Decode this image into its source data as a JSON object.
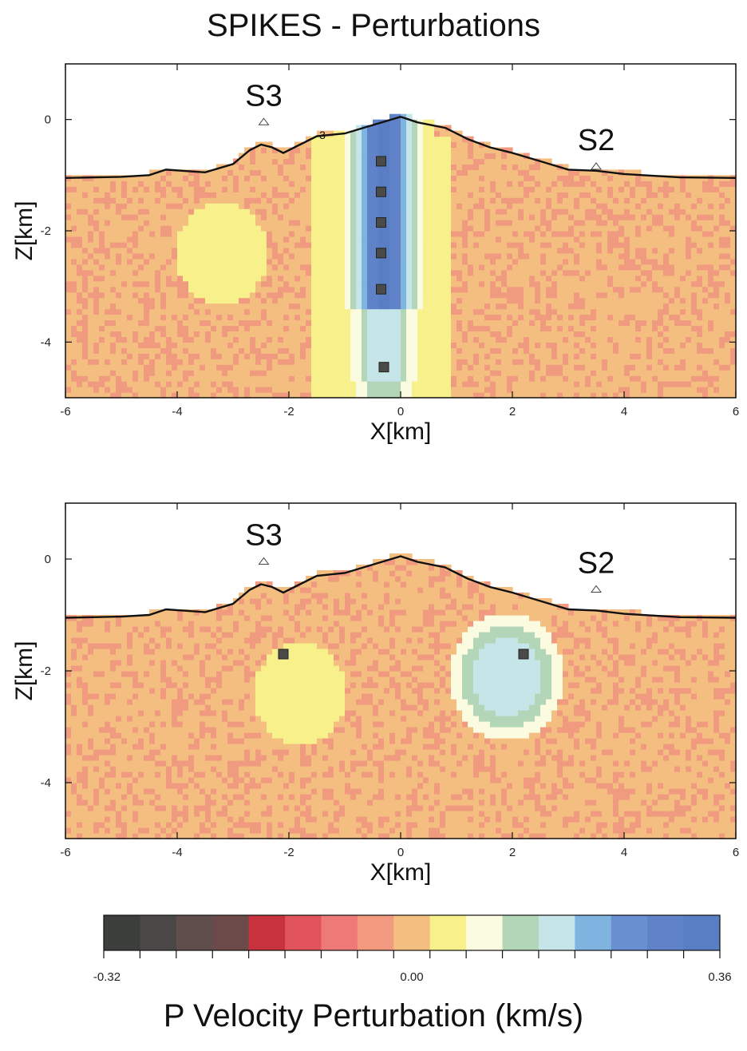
{
  "title": "SPIKES - Perturbations",
  "colorbar": {
    "label": "P Velocity Perturbation (km/s)",
    "min_label": "-0.32",
    "mid_label": "0.00",
    "max_label": "0.36",
    "colors": [
      "#3c3e3c",
      "#4a4846",
      "#5f4e4c",
      "#6c4a4a",
      "#c7323e",
      "#e0525c",
      "#ee7a78",
      "#f29a80",
      "#f4be80",
      "#f8f08a",
      "#fbfbe0",
      "#b3d6b8",
      "#c5e5e8",
      "#7fb3e0",
      "#6a8fd0",
      "#5f82c8",
      "#5a7ec4"
    ]
  },
  "chart_data": [
    {
      "type": "heatmap",
      "panel": "top",
      "xlabel": "X[km]",
      "ylabel": "Z[km]",
      "xlim": [
        -6,
        6
      ],
      "ylim": [
        -5,
        1
      ],
      "xticks": [
        "-6",
        "-4",
        "-2",
        "0",
        "2",
        "4",
        "6"
      ],
      "yticks": [
        "0",
        "-2",
        "-4"
      ],
      "station_labels": [
        {
          "text": "S3",
          "x": -2.45,
          "z": 0.25
        },
        {
          "text": "S2",
          "x": 3.5,
          "z": -0.55
        }
      ],
      "contour_label": {
        "text": "3",
        "x": -1.4,
        "z": -0.35
      },
      "spikes": [
        [
          -0.35,
          -0.75
        ],
        [
          -0.35,
          -1.3
        ],
        [
          -0.35,
          -1.85
        ],
        [
          -0.35,
          -2.4
        ],
        [
          -0.35,
          -3.05
        ],
        [
          -0.3,
          -4.45
        ]
      ],
      "topography": [
        [
          -6,
          -1.05
        ],
        [
          -5,
          -1.03
        ],
        [
          -4.5,
          -1.0
        ],
        [
          -4.2,
          -0.9
        ],
        [
          -3.5,
          -0.95
        ],
        [
          -3,
          -0.8
        ],
        [
          -2.7,
          -0.55
        ],
        [
          -2.5,
          -0.45
        ],
        [
          -2.3,
          -0.5
        ],
        [
          -2.1,
          -0.6
        ],
        [
          -1.8,
          -0.45
        ],
        [
          -1.5,
          -0.3
        ],
        [
          -1,
          -0.25
        ],
        [
          -0.5,
          -0.1
        ],
        [
          0,
          0.05
        ],
        [
          0.3,
          -0.05
        ],
        [
          0.8,
          -0.15
        ],
        [
          1.2,
          -0.35
        ],
        [
          1.6,
          -0.5
        ],
        [
          2,
          -0.6
        ],
        [
          2.5,
          -0.75
        ],
        [
          3,
          -0.9
        ],
        [
          3.5,
          -0.92
        ],
        [
          4,
          -0.98
        ],
        [
          5,
          -1.04
        ],
        [
          6,
          -1.05
        ]
      ],
      "value_range": [
        -0.32,
        0.36
      ],
      "background_value": 0.02,
      "anomalies": [
        {
          "shape": "column",
          "x_range": [
            -1.5,
            0.8
          ],
          "z_range": [
            -0.4,
            -5.0
          ],
          "peak": 0.34,
          "center_x": -0.3
        },
        {
          "shape": "blob",
          "x_center": -3.2,
          "z_center": -2.4,
          "value": 0.06
        }
      ]
    },
    {
      "type": "heatmap",
      "panel": "bottom",
      "xlabel": "X[km]",
      "ylabel": "Z[km]",
      "xlim": [
        -6,
        6
      ],
      "ylim": [
        -5,
        1
      ],
      "xticks": [
        "-6",
        "-4",
        "-2",
        "0",
        "2",
        "4",
        "6"
      ],
      "yticks": [
        "0",
        "-2",
        "-4"
      ],
      "station_labels": [
        {
          "text": "S3",
          "x": -2.45,
          "z": 0.25
        },
        {
          "text": "S2",
          "x": 3.5,
          "z": -0.25
        }
      ],
      "spikes": [
        [
          -2.1,
          -1.7
        ],
        [
          2.2,
          -1.7
        ]
      ],
      "topography": [
        [
          -6,
          -1.05
        ],
        [
          -5,
          -1.03
        ],
        [
          -4.5,
          -1.0
        ],
        [
          -4.2,
          -0.9
        ],
        [
          -3.5,
          -0.95
        ],
        [
          -3,
          -0.8
        ],
        [
          -2.7,
          -0.55
        ],
        [
          -2.5,
          -0.45
        ],
        [
          -2.3,
          -0.5
        ],
        [
          -2.1,
          -0.6
        ],
        [
          -1.8,
          -0.45
        ],
        [
          -1.5,
          -0.3
        ],
        [
          -1,
          -0.25
        ],
        [
          -0.5,
          -0.1
        ],
        [
          0,
          0.05
        ],
        [
          0.3,
          -0.05
        ],
        [
          0.8,
          -0.15
        ],
        [
          1.2,
          -0.35
        ],
        [
          1.6,
          -0.5
        ],
        [
          2,
          -0.6
        ],
        [
          2.5,
          -0.75
        ],
        [
          3,
          -0.9
        ],
        [
          3.5,
          -0.92
        ],
        [
          4,
          -0.98
        ],
        [
          5,
          -1.04
        ],
        [
          6,
          -1.05
        ]
      ],
      "value_range": [
        -0.32,
        0.36
      ],
      "background_value": 0.0,
      "anomalies": [
        {
          "shape": "blob",
          "x_center": -1.8,
          "z_center": -2.4,
          "value": 0.06
        },
        {
          "shape": "blob",
          "x_center": 1.9,
          "z_center": -2.1,
          "value": 0.18
        }
      ]
    }
  ]
}
